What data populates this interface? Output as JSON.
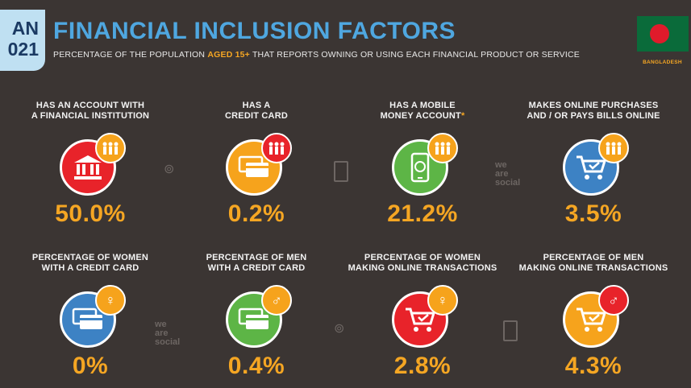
{
  "header": {
    "date_line1": "AN",
    "date_line2": "021",
    "title": "FINANCIAL INCLUSION FACTORS",
    "subtitle_pre": "PERCENTAGE OF THE POPULATION ",
    "subtitle_highlight": "AGED 15+",
    "subtitle_post": " THAT REPORTS OWNING OR USING EACH FINANCIAL PRODUCT OR SERVICE",
    "country": "BANGLADESH"
  },
  "watermark": {
    "line1": "we",
    "line2": "are",
    "line3": "social"
  },
  "colors": {
    "background": "#3b3533",
    "title": "#4fa7e0",
    "accent": "#f5a623",
    "red": "#e8232a",
    "orange": "#f6a31c",
    "green": "#5db546",
    "blue": "#3d82c4"
  },
  "cells": [
    {
      "label_1": "HAS AN ACCOUNT WITH",
      "label_2": "A FINANCIAL INSTITUTION",
      "value": "50.0%",
      "icon": "bank-icon",
      "badge": "people-icon",
      "color": "red"
    },
    {
      "label_1": "HAS A",
      "label_2": "CREDIT CARD",
      "value": "0.2%",
      "icon": "credit-card-icon",
      "badge": "people-icon",
      "color": "orange"
    },
    {
      "label_1": "HAS A MOBILE",
      "label_2": "MONEY ACCOUNT",
      "label_star": "*",
      "value": "21.2%",
      "icon": "mobile-money-icon",
      "badge": "people-icon",
      "color": "green"
    },
    {
      "label_1": "MAKES ONLINE PURCHASES",
      "label_2": "AND / OR PAYS BILLS ONLINE",
      "value": "3.5%",
      "icon": "shopping-cart-icon",
      "badge": "people-icon",
      "color": "blue"
    },
    {
      "label_1": "PERCENTAGE OF WOMEN",
      "label_2": "WITH A CREDIT CARD",
      "value": "0%",
      "icon": "credit-card-icon",
      "badge": "female-icon",
      "color": "blue"
    },
    {
      "label_1": "PERCENTAGE OF MEN",
      "label_2": "WITH A CREDIT CARD",
      "value": "0.4%",
      "icon": "credit-card-icon",
      "badge": "male-icon",
      "color": "green"
    },
    {
      "label_1": "PERCENTAGE OF WOMEN",
      "label_2": "MAKING ONLINE TRANSACTIONS",
      "value": "2.8%",
      "icon": "shopping-cart-icon",
      "badge": "female-icon",
      "color": "red"
    },
    {
      "label_1": "PERCENTAGE OF MEN",
      "label_2": "MAKING ONLINE TRANSACTIONS",
      "value": "4.3%",
      "icon": "shopping-cart-icon",
      "badge": "male-icon",
      "color": "orange"
    }
  ]
}
